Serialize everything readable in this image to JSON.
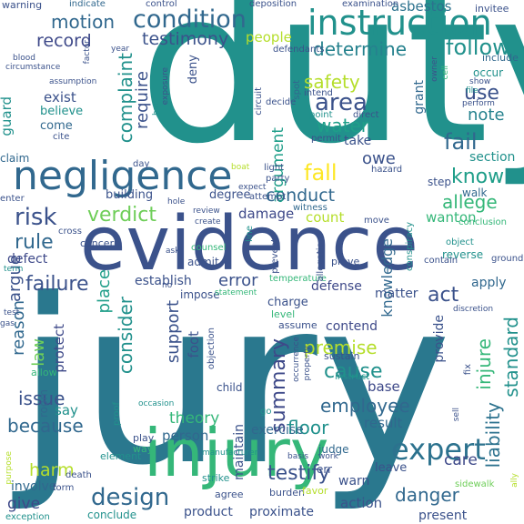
{
  "palette": {
    "deep_purple": "#440154",
    "indigo": "#3b528b",
    "blue": "#31688e",
    "teal": "#21918c",
    "sea_green": "#1f9e89",
    "green": "#35b779",
    "light_green": "#6ece58",
    "lime": "#b5de2b",
    "yellow": "#fde725"
  },
  "words": [
    {
      "text": "duty",
      "color": "#21918c"
    },
    {
      "text": "jury",
      "color": "#2a788e"
    },
    {
      "text": "evidence",
      "color": "#3b528b"
    },
    {
      "text": "injury",
      "color": "#35b779"
    },
    {
      "text": "negligence",
      "color": "#31688e"
    },
    {
      "text": "instruction",
      "color": "#21918c"
    },
    {
      "text": "condition",
      "color": "#31688e"
    },
    {
      "text": "testimony",
      "color": "#3b528b"
    },
    {
      "text": "motion",
      "color": "#31688e"
    },
    {
      "text": "record",
      "color": "#3e4989"
    },
    {
      "text": "determine",
      "color": "#26828e"
    },
    {
      "text": "follow",
      "color": "#21918c"
    },
    {
      "text": "asbestos",
      "color": "#2c728e"
    },
    {
      "text": "safety",
      "color": "#b5de2b"
    },
    {
      "text": "area",
      "color": "#3b528b"
    },
    {
      "text": "use",
      "color": "#3b528b"
    },
    {
      "text": "water",
      "color": "#1f9e89"
    },
    {
      "text": "note",
      "color": "#26828e"
    },
    {
      "text": "fail",
      "color": "#31688e"
    },
    {
      "text": "fall",
      "color": "#fde725"
    },
    {
      "text": "know",
      "color": "#1f9e89"
    },
    {
      "text": "owe",
      "color": "#3b528b"
    },
    {
      "text": "conduct",
      "color": "#31688e"
    },
    {
      "text": "allege",
      "color": "#35b779"
    },
    {
      "text": "risk",
      "color": "#3b528b"
    },
    {
      "text": "verdict",
      "color": "#6ece58"
    },
    {
      "text": "damage",
      "color": "#3e4989"
    },
    {
      "text": "count",
      "color": "#b5de2b"
    },
    {
      "text": "wanton",
      "color": "#35b779"
    },
    {
      "text": "rule",
      "color": "#31688e"
    },
    {
      "text": "failure",
      "color": "#3b528b"
    },
    {
      "text": "error",
      "color": "#3b528b"
    },
    {
      "text": "defense",
      "color": "#3e4989"
    },
    {
      "text": "apply",
      "color": "#31688e"
    },
    {
      "text": "act",
      "color": "#3b528b"
    },
    {
      "text": "premise",
      "color": "#b5de2b"
    },
    {
      "text": "cause",
      "color": "#21918c"
    },
    {
      "text": "contend",
      "color": "#3e4989"
    },
    {
      "text": "issue",
      "color": "#3e4989"
    },
    {
      "text": "base",
      "color": "#3b528b"
    },
    {
      "text": "employee",
      "color": "#3e4989"
    },
    {
      "text": "because",
      "color": "#31688e"
    },
    {
      "text": "floor",
      "color": "#31688e"
    },
    {
      "text": "result",
      "color": "#21918c"
    },
    {
      "text": "theory",
      "color": "#31688e"
    },
    {
      "text": "person",
      "color": "#35b779"
    },
    {
      "text": "exercise",
      "color": "#31688e"
    },
    {
      "text": "harm",
      "color": "#31688e"
    },
    {
      "text": "expert",
      "color": "#b5de2b"
    },
    {
      "text": "care",
      "color": "#2c728e"
    },
    {
      "text": "give",
      "color": "#3e4989"
    },
    {
      "text": "design",
      "color": "#3e4989"
    },
    {
      "text": "testify",
      "color": "#31688e"
    },
    {
      "text": "danger",
      "color": "#3b528b"
    },
    {
      "text": "product",
      "color": "#31688e"
    },
    {
      "text": "action",
      "color": "#3b528b"
    },
    {
      "text": "present",
      "color": "#3b528b"
    },
    {
      "text": "conclude",
      "color": "#3b528b"
    },
    {
      "text": "proximate",
      "color": "#21918c"
    },
    {
      "text": "involve",
      "color": "#3b528b"
    },
    {
      "text": "warn",
      "color": "#31688e"
    },
    {
      "text": "leave",
      "color": "#3b528b"
    },
    {
      "text": "reason",
      "color": "#3b528b"
    },
    {
      "text": "argue",
      "color": "#31688e"
    },
    {
      "text": "law",
      "color": "#3b528b"
    },
    {
      "text": "place",
      "color": "#6ece58"
    },
    {
      "text": "consider",
      "color": "#1f9e89"
    },
    {
      "text": "complaint",
      "color": "#21918c"
    },
    {
      "text": "require",
      "color": "#21918c"
    },
    {
      "text": "argument",
      "color": "#3b528b"
    },
    {
      "text": "support",
      "color": "#1f9e89"
    },
    {
      "text": "summary",
      "color": "#3b528b"
    },
    {
      "text": "liability",
      "color": "#2c728e"
    },
    {
      "text": "standard",
      "color": "#21918c"
    },
    {
      "text": "injure",
      "color": "#35b779"
    },
    {
      "text": "guard",
      "color": "#3b528b"
    },
    {
      "text": "protect",
      "color": "#21918c"
    },
    {
      "text": "maintain",
      "color": "#21918c"
    },
    {
      "text": "foot",
      "color": "#3e4989"
    },
    {
      "text": "grant",
      "color": "#21918c"
    },
    {
      "text": "knowledge",
      "color": "#3b528b"
    },
    {
      "text": "provide",
      "color": "#3b528b"
    },
    {
      "text": "deny",
      "color": "#31688e"
    },
    {
      "text": "room",
      "color": "#31688e"
    },
    {
      "text": "exist",
      "color": "#3b528b"
    },
    {
      "text": "believe",
      "color": "#3e4989"
    },
    {
      "text": "say",
      "color": "#3b528b"
    },
    {
      "text": "matter",
      "color": "#3b528b"
    },
    {
      "text": "defect",
      "color": "#3b528b"
    },
    {
      "text": "establish",
      "color": "#3b528b"
    },
    {
      "text": "take",
      "color": "#b5de2b"
    },
    {
      "text": "people",
      "color": "#31688e"
    },
    {
      "text": "come",
      "color": "#31688e"
    },
    {
      "text": "claim",
      "color": "#3b528b"
    },
    {
      "text": "degree",
      "color": "#3b528b"
    },
    {
      "text": "building",
      "color": "#31688e"
    },
    {
      "text": "witness",
      "color": "#21918c"
    },
    {
      "text": "section",
      "color": "#21918c"
    },
    {
      "text": "occur",
      "color": "#31688e"
    },
    {
      "text": "include",
      "color": "#31688e"
    },
    {
      "text": "walk",
      "color": "#3b528b"
    },
    {
      "text": "step",
      "color": "#21918c"
    },
    {
      "text": "reverse",
      "color": "#3b528b"
    },
    {
      "text": "prove",
      "color": "#3b528b"
    },
    {
      "text": "charge",
      "color": "#3b528b"
    },
    {
      "text": "admit",
      "color": "#35b779"
    },
    {
      "text": "counsel",
      "color": "#3b528b"
    },
    {
      "text": "impose",
      "color": "#3b528b"
    },
    {
      "text": "child",
      "color": "#35b779"
    },
    {
      "text": "level",
      "color": "#3b528b"
    },
    {
      "text": "assume",
      "color": "#3b528b"
    },
    {
      "text": "sustain",
      "color": "#21918c"
    },
    {
      "text": "instruct",
      "color": "#3b528b"
    },
    {
      "text": "allow",
      "color": "#31688e"
    },
    {
      "text": "err",
      "color": "#35b779"
    },
    {
      "text": "judge",
      "color": "#3b528b"
    },
    {
      "text": "burden",
      "color": "#31688e"
    },
    {
      "text": "favor",
      "color": "#3b528b"
    },
    {
      "text": "strike",
      "color": "#b5de2b"
    },
    {
      "text": "agree",
      "color": "#21918c"
    },
    {
      "text": "form",
      "color": "#3b528b"
    },
    {
      "text": "death",
      "color": "#3b528b"
    },
    {
      "text": "exception",
      "color": "#3b528b"
    },
    {
      "text": "element",
      "color": "#21918c"
    },
    {
      "text": "way",
      "color": "#21918c"
    },
    {
      "text": "play",
      "color": "#35b779"
    },
    {
      "text": "go",
      "color": "#3b528b"
    },
    {
      "text": "sidewalk",
      "color": "#21918c"
    },
    {
      "text": "conclusion",
      "color": "#3b528b"
    },
    {
      "text": "ground",
      "color": "#6ece58"
    },
    {
      "text": "contain",
      "color": "#35b779"
    },
    {
      "text": "object",
      "color": "#3b528b"
    },
    {
      "text": "move",
      "color": "#3b528b"
    },
    {
      "text": "hazard",
      "color": "#21918c"
    },
    {
      "text": "light",
      "color": "#3b528b"
    },
    {
      "text": "party",
      "color": "#3b528b"
    },
    {
      "text": "permit",
      "color": "#3b528b"
    },
    {
      "text": "point",
      "color": "#3b528b"
    },
    {
      "text": "direct",
      "color": "#3b528b"
    },
    {
      "text": "intend",
      "color": "#21918c"
    },
    {
      "text": "decide",
      "color": "#3b528b"
    },
    {
      "text": "defendants",
      "color": "#31688e"
    },
    {
      "text": "deposition",
      "color": "#3b528b"
    },
    {
      "text": "examination",
      "color": "#3b528b"
    },
    {
      "text": "invitee",
      "color": "#3b528b"
    },
    {
      "text": "control",
      "color": "#3b528b"
    },
    {
      "text": "indicate",
      "color": "#3b528b"
    },
    {
      "text": "warning",
      "color": "#3b528b"
    },
    {
      "text": "blood",
      "color": "#3b528b"
    },
    {
      "text": "circumstance",
      "color": "#3b528b"
    },
    {
      "text": "assumption",
      "color": "#31688e"
    },
    {
      "text": "cite",
      "color": "#3b528b"
    },
    {
      "text": "day",
      "color": "#3b528b"
    },
    {
      "text": "hole",
      "color": "#3b528b"
    },
    {
      "text": "review",
      "color": "#3b528b"
    },
    {
      "text": "cross",
      "color": "#3b528b"
    },
    {
      "text": "enter",
      "color": "#3b528b"
    },
    {
      "text": "term",
      "color": "#3b528b"
    },
    {
      "text": "ask",
      "color": "#3b528b"
    },
    {
      "text": "attempt",
      "color": "#3b528b"
    },
    {
      "text": "expect",
      "color": "#3b528b"
    },
    {
      "text": "perform",
      "color": "#21918c"
    },
    {
      "text": "show",
      "color": "#3b528b"
    },
    {
      "text": "file",
      "color": "#3b528b"
    },
    {
      "text": "year",
      "color": "#3b528b"
    },
    {
      "text": "create",
      "color": "#3b528b"
    },
    {
      "text": "statement",
      "color": "#3b528b"
    },
    {
      "text": "temperature",
      "color": "#21918c"
    },
    {
      "text": "discretion",
      "color": "#3b528b"
    },
    {
      "text": "occasion",
      "color": "#35b779"
    },
    {
      "text": "manufacturer",
      "color": "#3b528b"
    },
    {
      "text": "concern",
      "color": "#35b779"
    },
    {
      "text": "test",
      "color": "#35b779"
    },
    {
      "text": "gas",
      "color": "#3b528b"
    },
    {
      "text": "basis",
      "color": "#21918c"
    },
    {
      "text": "work",
      "color": "#21918c"
    },
    {
      "text": "boat",
      "color": "#b5de2b"
    },
    {
      "text": "no",
      "color": "#3b528b"
    },
    {
      "text": "purpose",
      "color": "#21918c"
    },
    {
      "text": "line",
      "color": "#3b528b"
    },
    {
      "text": "prevent",
      "color": "#3b528b"
    },
    {
      "text": "allegation",
      "color": "#21918c"
    },
    {
      "text": "conspiracy",
      "color": "#3b528b"
    },
    {
      "text": "objection",
      "color": "#3b528b"
    },
    {
      "text": "occurrence",
      "color": "#3b528b"
    },
    {
      "text": "property",
      "color": "#21918c"
    },
    {
      "text": "proof",
      "color": "#3b528b"
    },
    {
      "text": "factor",
      "color": "#3b528b"
    },
    {
      "text": "exposure",
      "color": "#3b528b"
    },
    {
      "text": "bar",
      "color": "#3b528b"
    },
    {
      "text": "circuit",
      "color": "#21918c"
    },
    {
      "text": "spot",
      "color": "#3b528b"
    },
    {
      "text": "cell",
      "color": "#3b528b"
    },
    {
      "text": "owner",
      "color": "#b5de2b"
    },
    {
      "text": "sell",
      "color": "#3b528b"
    },
    {
      "text": "fix",
      "color": "#21918c"
    },
    {
      "text": "ally",
      "color": "#21918c"
    },
    {
      "text": "allin",
      "color": "#3b528b"
    },
    {
      "text": "occur",
      "color": "#3b528b"
    },
    {
      "text": "complete",
      "color": "#b5de2b"
    }
  ]
}
